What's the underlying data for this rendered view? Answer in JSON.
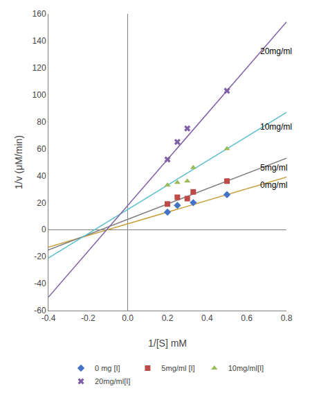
{
  "chart_data": {
    "type": "scatter",
    "title": "",
    "xlabel": "1/[S] mM",
    "ylabel": "1/v (μM/min)",
    "xlim": [
      -0.4,
      0.8
    ],
    "ylim": [
      -60,
      160
    ],
    "xticks": [
      -0.4,
      -0.2,
      {
        "value": 0.0,
        "label": "0.0"
      },
      0.2,
      0.4,
      0.6,
      0.8
    ],
    "yticks": [
      -60,
      -40,
      -20,
      0,
      20,
      40,
      60,
      80,
      100,
      120,
      140,
      160
    ],
    "grid": false,
    "legend": "bottom",
    "series": [
      {
        "type": "line",
        "color": "#C8A040",
        "x": [
          -0.4,
          0.8
        ],
        "values": [
          -12.99,
          38.97
        ]
      },
      {
        "type": "line",
        "color": "#808080",
        "x": [
          -0.4,
          0.8
        ],
        "values": [
          -15.01,
          53.03
        ]
      },
      {
        "type": "line",
        "color": "#5BBECE",
        "x": [
          -0.4,
          0.8
        ],
        "values": [
          -21,
          87
        ]
      },
      {
        "type": "line",
        "color": "#7F5FA5",
        "x": [
          -0.4,
          0.8
        ],
        "values": [
          -50,
          154
        ]
      },
      {
        "type": "scatter",
        "name": "0 mg [I]",
        "color": "#4472C4",
        "marker": "diamond",
        "x": [
          0.2,
          0.25,
          0.33,
          0.5
        ],
        "values": [
          13,
          18,
          20,
          26
        ]
      },
      {
        "type": "scatter",
        "name": "5mg/ml [I]",
        "color": "#BE4B48",
        "marker": "square",
        "x": [
          0.2,
          0.25,
          0.3,
          0.33,
          0.5
        ],
        "values": [
          19,
          24,
          23,
          28,
          36
        ]
      },
      {
        "type": "scatter",
        "name": "10mg/ml[I]",
        "color": "#9BBB59",
        "marker": "triangle-up",
        "x": [
          0.2,
          0.25,
          0.3,
          0.33,
          0.5
        ],
        "values": [
          33,
          35,
          36,
          46,
          60
        ]
      },
      {
        "type": "scatter",
        "name": "20mg/ml[I]",
        "color": "#7F5FA5",
        "marker": "x",
        "x": [
          0.2,
          0.25,
          0.3,
          0.5
        ],
        "values": [
          52,
          65,
          75,
          103
        ]
      }
    ],
    "annotations": [
      {
        "text": "0mg/ml",
        "x": 0.66,
        "y": 33
      },
      {
        "text": "5mg/ml",
        "x": 0.66,
        "y": 46
      },
      {
        "text": "10mg/ml",
        "x": 0.66,
        "y": 76
      },
      {
        "text": "20mg/ml",
        "x": 0.66,
        "y": 132
      }
    ]
  }
}
